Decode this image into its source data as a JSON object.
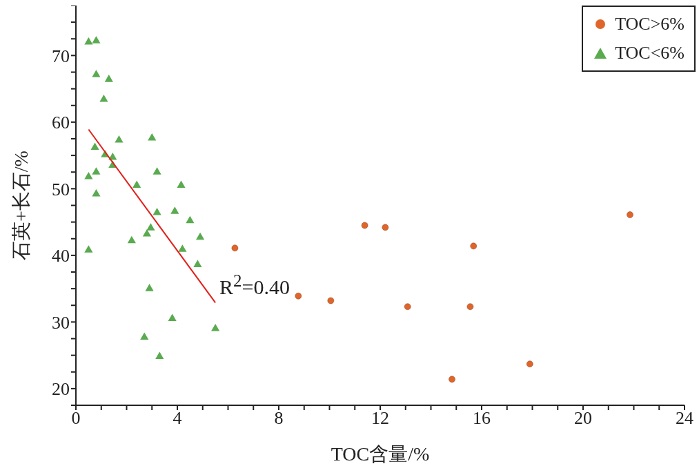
{
  "chart_data": {
    "type": "scatter",
    "xlabel": "TOC含量/%",
    "ylabel": "石英+长石/%",
    "xlim": [
      0,
      24
    ],
    "ylim": [
      17.5,
      77.5
    ],
    "xticks": [
      0,
      {
        "value": 1,
        "label": null
      },
      {
        "value": 2,
        "label": null
      },
      {
        "value": 3,
        "label": null
      },
      4,
      {
        "value": 5,
        "label": null
      },
      {
        "value": 6,
        "label": null
      },
      {
        "value": 7,
        "label": null
      },
      8,
      {
        "value": 9,
        "label": null
      },
      {
        "value": 10,
        "label": null
      },
      {
        "value": 11,
        "label": null
      },
      12,
      {
        "value": 13,
        "label": null
      },
      {
        "value": 14,
        "label": null
      },
      {
        "value": 15,
        "label": null
      },
      16,
      {
        "value": 17,
        "label": null
      },
      {
        "value": 18,
        "label": null
      },
      {
        "value": 19,
        "label": null
      },
      20,
      {
        "value": 21,
        "label": null
      },
      {
        "value": 22,
        "label": null
      },
      {
        "value": 23,
        "label": null
      },
      24
    ],
    "yticks": [
      {
        "value": 17.5,
        "label": null
      },
      20,
      {
        "value": 22.5,
        "label": null
      },
      {
        "value": 25,
        "label": null
      },
      {
        "value": 27.5,
        "label": null
      },
      30,
      {
        "value": 32.5,
        "label": null
      },
      {
        "value": 35,
        "label": null
      },
      {
        "value": 37.5,
        "label": null
      },
      40,
      {
        "value": 42.5,
        "label": null
      },
      {
        "value": 45,
        "label": null
      },
      {
        "value": 47.5,
        "label": null
      },
      50,
      {
        "value": 52.5,
        "label": null
      },
      {
        "value": 55,
        "label": null
      },
      {
        "value": 57.5,
        "label": null
      },
      60,
      {
        "value": 62.5,
        "label": null
      },
      {
        "value": 65,
        "label": null
      },
      {
        "value": 67.5,
        "label": null
      },
      70,
      {
        "value": 72.5,
        "label": null
      },
      {
        "value": 75,
        "label": null
      },
      {
        "value": 77.5,
        "label": null
      }
    ],
    "legend": "top right",
    "series": [
      {
        "name": "TOC>6%",
        "color": "#e0652a",
        "marker": "circle",
        "x": [
          6.27,
          8.77,
          10.05,
          11.39,
          12.2,
          13.08,
          15.55,
          15.68,
          14.83,
          17.9,
          21.85
        ],
        "values": [
          41.1,
          33.9,
          33.2,
          44.5,
          44.2,
          32.3,
          32.3,
          41.4,
          21.4,
          23.7,
          46.1
        ]
      },
      {
        "name": "TOC<6%",
        "color": "#5aaa50",
        "marker": "triangle",
        "x": [
          0.5,
          0.8,
          0.8,
          1.3,
          1.1,
          1.7,
          3.0,
          0.75,
          1.15,
          1.45,
          1.45,
          0.8,
          3.2,
          0.5,
          2.4,
          4.15,
          0.8,
          3.2,
          3.9,
          4.5,
          2.95,
          2.8,
          2.2,
          4.9,
          4.2,
          0.5,
          4.8,
          2.9,
          3.8,
          5.5,
          2.7,
          3.3
        ],
        "values": [
          72.0,
          72.2,
          67.1,
          66.4,
          63.4,
          57.3,
          57.6,
          56.2,
          55.1,
          54.7,
          53.5,
          52.5,
          52.5,
          51.8,
          50.5,
          50.5,
          49.2,
          46.4,
          46.6,
          45.2,
          44.1,
          43.2,
          42.2,
          42.7,
          40.9,
          40.8,
          38.6,
          35.0,
          30.5,
          29.0,
          27.7,
          24.8
        ]
      },
      {
        "type": "line",
        "color": "#e0201b",
        "x": [
          0.5,
          5.5
        ],
        "values": [
          58.9,
          32.9
        ]
      }
    ],
    "annotations": [
      "R$^{2}$=0.40"
    ]
  }
}
